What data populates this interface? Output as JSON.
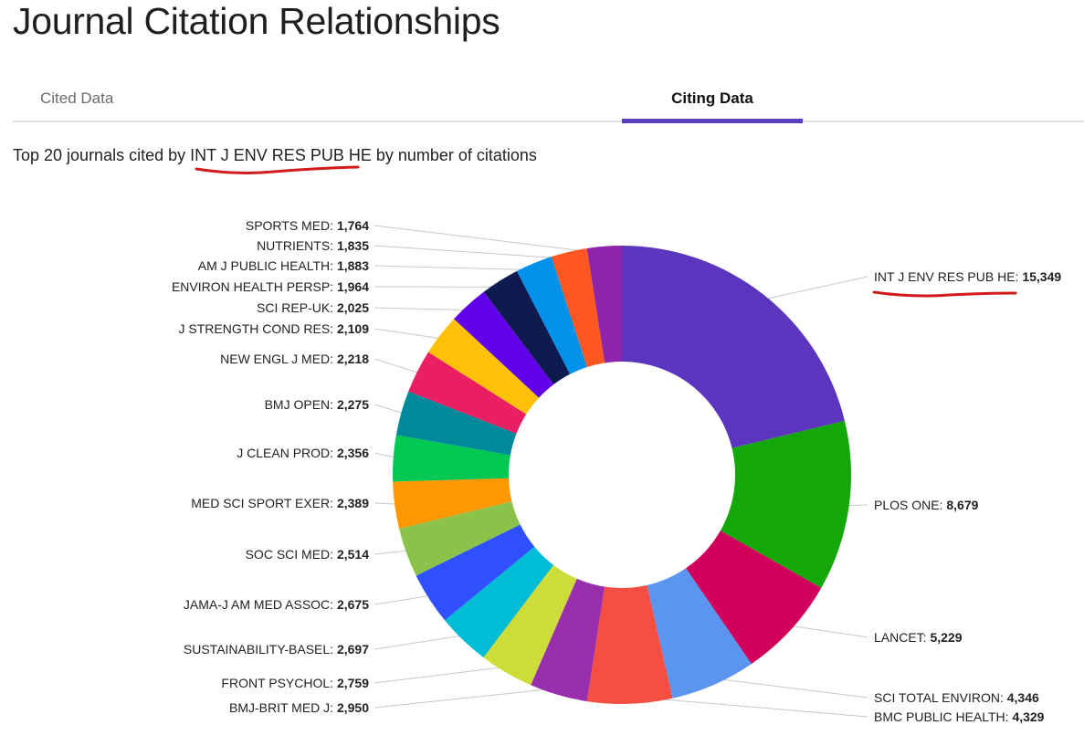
{
  "page_title": "Journal Citation Relationships",
  "tabs": [
    {
      "label": "Cited Data",
      "active": false
    },
    {
      "label": "Citing Data",
      "active": true
    }
  ],
  "subtitle": {
    "prefix": "Top 20 journals cited by ",
    "journal": "INT J ENV RES PUB HE",
    "suffix": " by number of citations"
  },
  "chart_data": {
    "type": "pie",
    "donut": true,
    "title": "Top 20 journals cited by INT J ENV RES PUB HE by number of citations",
    "slices": [
      {
        "label": "INT J ENV RES PUB HE",
        "value": 15349,
        "display": "15,349",
        "color": "#5c35be"
      },
      {
        "label": "PLOS ONE",
        "value": 8679,
        "display": "8,679",
        "color": "#13a70a"
      },
      {
        "label": "LANCET",
        "value": 5229,
        "display": "5,229",
        "color": "#d1005a"
      },
      {
        "label": "SCI TOTAL ENVIRON",
        "value": 4346,
        "display": "4,346",
        "color": "#5b95f0"
      },
      {
        "label": "BMC PUBLIC HEALTH",
        "value": 4329,
        "display": "4,329",
        "color": "#f64f42"
      },
      {
        "label": "BMJ-BRIT MED J",
        "value": 2950,
        "display": "2,950",
        "color": "#9a2fae"
      },
      {
        "label": "FRONT PSYCHOL",
        "value": 2759,
        "display": "2,759",
        "color": "#cddc39"
      },
      {
        "label": "SUSTAINABILITY-BASEL",
        "value": 2697,
        "display": "2,697",
        "color": "#00bcd4"
      },
      {
        "label": "JAMA-J AM MED ASSOC",
        "value": 2675,
        "display": "2,675",
        "color": "#304ffe"
      },
      {
        "label": "SOC SCI MED",
        "value": 2514,
        "display": "2,514",
        "color": "#8bc34a"
      },
      {
        "label": "MED SCI SPORT EXER",
        "value": 2389,
        "display": "2,389",
        "color": "#ff9800"
      },
      {
        "label": "J CLEAN PROD",
        "value": 2356,
        "display": "2,356",
        "color": "#00c853"
      },
      {
        "label": "BMJ OPEN",
        "value": 2275,
        "display": "2,275",
        "color": "#00899a"
      },
      {
        "label": "NEW ENGL J MED",
        "value": 2218,
        "display": "2,218",
        "color": "#e91e63"
      },
      {
        "label": "J STRENGTH COND RES",
        "value": 2109,
        "display": "2,109",
        "color": "#ffc107"
      },
      {
        "label": "SCI REP-UK",
        "value": 2025,
        "display": "2,025",
        "color": "#6200ea"
      },
      {
        "label": "ENVIRON HEALTH PERSP",
        "value": 1964,
        "display": "1,964",
        "color": "#0d1b4f"
      },
      {
        "label": "AM J PUBLIC HEALTH",
        "value": 1883,
        "display": "1,883",
        "color": "#0091ea"
      },
      {
        "label": "NUTRIENTS",
        "value": 1835,
        "display": "1,835",
        "color": "#ff5722"
      },
      {
        "label": "SPORTS MED",
        "value": 1764,
        "display": "1,764",
        "color": "#8e24aa"
      }
    ]
  }
}
